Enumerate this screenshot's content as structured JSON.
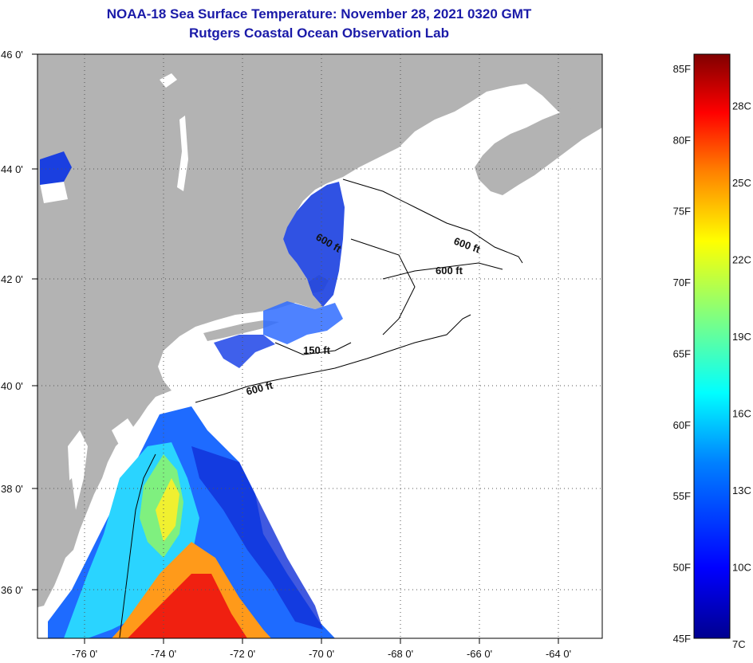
{
  "title": "NOAA-18 Sea Surface Temperature:  November 28, 2021 0320 GMT",
  "subtitle": "Rutgers Coastal Ocean Observation Lab",
  "lat_labels": [
    "46 0'",
    "44 0'",
    "42 0'",
    "40 0'",
    "38 0'",
    "36 0'"
  ],
  "lon_labels": [
    "-76 0'",
    "-74 0'",
    "-72 0'",
    "-70 0'",
    "-68 0'",
    "-66 0'",
    "-64 0'"
  ],
  "isobaths": [
    "600 ft",
    "600 ft",
    "600 ft",
    "150 ft",
    "600 ft"
  ],
  "colorbar": {
    "f_labels": [
      "85F",
      "80F",
      "75F",
      "70F",
      "65F",
      "60F",
      "55F",
      "50F",
      "45F"
    ],
    "c_labels": [
      "28C",
      "25C",
      "22C",
      "19C",
      "16C",
      "13C",
      "10C",
      "7C"
    ],
    "colors": [
      "#00008f",
      "#0000ff",
      "#0080ff",
      "#00ffff",
      "#80ff80",
      "#ffff00",
      "#ff8000",
      "#ff0000",
      "#800000"
    ]
  },
  "colors": {
    "land": "#b3b3b3",
    "ocean": "#ffffff",
    "title": "#1a1aa8"
  }
}
